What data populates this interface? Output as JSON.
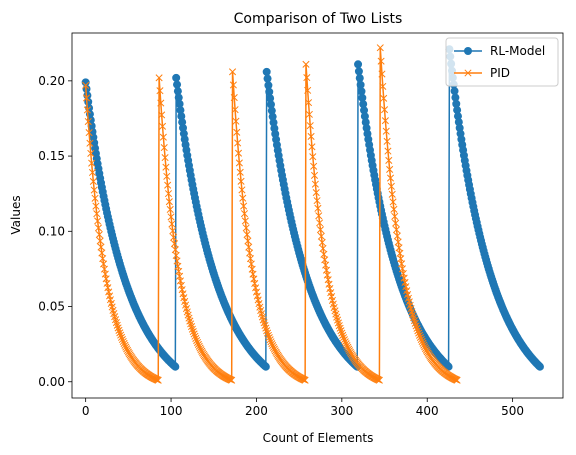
{
  "chart_data": {
    "type": "line",
    "title": "Comparison of Two Lists",
    "xlabel": "Count of Elements",
    "ylabel": "Values",
    "xlim": [
      -16,
      559
    ],
    "ylim": [
      -0.0108,
      0.2318
    ],
    "xticks": [
      0,
      100,
      200,
      300,
      400,
      500
    ],
    "yticks": [
      0.0,
      0.05,
      0.1,
      0.15,
      0.2
    ],
    "ytick_labels": [
      "0.00",
      "0.05",
      "0.10",
      "0.15",
      "0.20"
    ],
    "legend_position": "top-right",
    "grid": false,
    "series": [
      {
        "name": "RL-Model",
        "color": "#1f77b4",
        "marker": "circle",
        "segments": [
          {
            "x_start": 0,
            "x_end": 105,
            "y_start": 0.199,
            "y_end": 0.01,
            "curve": 2.2
          },
          {
            "x_start": 106,
            "x_end": 211,
            "y_start": 0.202,
            "y_end": 0.01,
            "curve": 2.2
          },
          {
            "x_start": 212,
            "x_end": 318,
            "y_start": 0.206,
            "y_end": 0.01,
            "curve": 2.2
          },
          {
            "x_start": 319,
            "x_end": 425,
            "y_start": 0.211,
            "y_end": 0.01,
            "curve": 2.2
          },
          {
            "x_start": 426,
            "x_end": 532,
            "y_start": 0.221,
            "y_end": 0.01,
            "curve": 2.2
          }
        ]
      },
      {
        "name": "PID",
        "color": "#ff7f0e",
        "marker": "x",
        "segments": [
          {
            "x_start": 0,
            "x_end": 85,
            "y_start": 0.197,
            "y_end": 0.001,
            "curve": 3.6
          },
          {
            "x_start": 86,
            "x_end": 171,
            "y_start": 0.202,
            "y_end": 0.001,
            "curve": 3.6
          },
          {
            "x_start": 172,
            "x_end": 257,
            "y_start": 0.206,
            "y_end": 0.001,
            "curve": 3.6
          },
          {
            "x_start": 258,
            "x_end": 344,
            "y_start": 0.211,
            "y_end": 0.001,
            "curve": 3.6
          },
          {
            "x_start": 345,
            "x_end": 435,
            "y_start": 0.222,
            "y_end": 0.001,
            "curve": 3.6
          }
        ]
      }
    ]
  }
}
